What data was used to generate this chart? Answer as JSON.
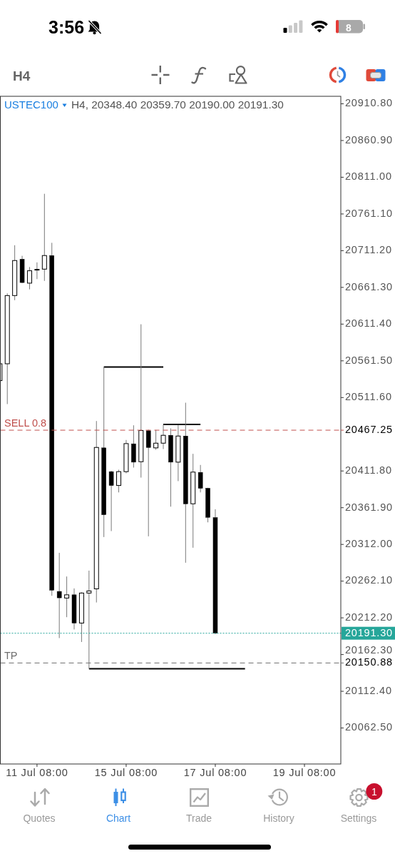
{
  "chart_data": {
    "type": "candlestick",
    "title": "USTEC100",
    "subtitle": "H4, 20348.40 20359.70 20190.00 20191.30",
    "categories": [
      null,
      null,
      null,
      null,
      null,
      "11 Jul 08:00",
      null,
      null,
      null,
      null,
      null,
      null,
      null,
      null,
      null,
      null,
      null,
      "15 Jul 08:00",
      null,
      null,
      null,
      null,
      null,
      null,
      null,
      null,
      null,
      null,
      null,
      "17 Jul 08:00",
      null,
      null,
      null,
      null,
      null,
      null,
      null,
      null,
      null,
      null,
      null,
      "19 Jul 08:00",
      null,
      null,
      null,
      null,
      null
    ],
    "ohlc": [
      [
        20534.6,
        20560.0,
        20525.0,
        20557.5
      ],
      [
        20557.5,
        20653.2,
        20502.7,
        20650.2
      ],
      [
        20650.2,
        20718.6,
        20643.9,
        20697.8
      ],
      [
        20699.6,
        20704.2,
        20667.1,
        20667.9
      ],
      [
        20667.1,
        20689.0,
        20658.6,
        20683.9
      ],
      [
        20685.2,
        20695.3,
        20672.6,
        20685.8
      ],
      [
        20686.1,
        20788.5,
        20670.1,
        20704.6
      ],
      [
        20704.6,
        20721.9,
        20242.2,
        20249.8
      ],
      [
        20248.1,
        20300.6,
        20184.7,
        20239.4
      ],
      [
        20239.1,
        20268.4,
        20213.1,
        20243.5
      ],
      [
        20243.5,
        20252.2,
        20196.4,
        20205.1
      ],
      [
        20205.1,
        20247.0,
        20179.4,
        20245.9
      ],
      [
        20245.9,
        20276.4,
        20143.0,
        20248.8
      ],
      [
        20251.6,
        20479.7,
        20233.1,
        20443.8
      ],
      [
        20443.2,
        20553.4,
        20322.0,
        20352.4
      ],
      [
        20410.9,
        20412.0,
        20330.1,
        20392.1
      ],
      [
        20392.1,
        20413.5,
        20382.7,
        20410.9
      ],
      [
        20410.9,
        20453.9,
        20408.6,
        20449.0
      ],
      [
        20448.7,
        20473.9,
        20416.4,
        20423.8
      ],
      [
        20424.4,
        20611.2,
        20402.8,
        20466.8
      ],
      [
        20466.5,
        20468.0,
        20323.0,
        20443.8
      ],
      [
        20443.2,
        20467.5,
        20440.6,
        20449.6
      ],
      [
        20449.6,
        20474.8,
        20441.6,
        20460.3
      ],
      [
        20460.3,
        20469.7,
        20363.3,
        20423.8
      ],
      [
        20423.8,
        20473.9,
        20398.0,
        20459.3
      ],
      [
        20459.3,
        20504.6,
        20287.1,
        20367.2
      ],
      [
        20367.2,
        20435.1,
        20307.5,
        20410.3
      ],
      [
        20409.9,
        20420.0,
        20382.7,
        20388.3
      ],
      [
        20388.3,
        20389.0,
        20342.0,
        20348.8
      ],
      [
        20348.4,
        20359.7,
        20190.0,
        20191.3
      ],
      null,
      null,
      null,
      null,
      null,
      null,
      null,
      null,
      null,
      null,
      null,
      null,
      null,
      null,
      null,
      null,
      null
    ],
    "series": [
      {
        "type": "line",
        "color": "#000000",
        "values": [
          null,
          null,
          null,
          null,
          null,
          null,
          null,
          null,
          null,
          null,
          null,
          null,
          null,
          null,
          20553,
          20553,
          20553,
          20553,
          20553,
          20553,
          20553,
          20553,
          20553,
          null,
          null,
          null,
          null,
          null,
          null,
          null,
          null,
          null,
          null,
          null,
          null,
          null,
          null,
          null,
          null,
          null,
          null,
          null,
          null,
          null,
          null,
          null,
          null
        ]
      },
      {
        "type": "line",
        "color": "#000000",
        "values": [
          null,
          null,
          null,
          null,
          null,
          null,
          null,
          null,
          null,
          null,
          null,
          null,
          null,
          null,
          null,
          null,
          null,
          null,
          null,
          null,
          null,
          null,
          20475,
          20475,
          20475,
          20475,
          20475,
          20475,
          null,
          null,
          null,
          null,
          null,
          null,
          null,
          null,
          null,
          null,
          null,
          null,
          null,
          null,
          null,
          null,
          null,
          null,
          null
        ]
      },
      {
        "type": "line",
        "color": "#000000",
        "values": [
          null,
          null,
          null,
          null,
          null,
          null,
          null,
          null,
          null,
          null,
          null,
          null,
          20143,
          20143,
          20143,
          20143,
          20143,
          20143,
          20143,
          20143,
          20143,
          20143,
          20143,
          20143,
          20143,
          20143,
          20143,
          20143,
          20143,
          20143,
          20143,
          20143,
          20143,
          20143,
          null,
          null,
          null,
          null,
          null,
          null,
          null,
          null,
          null,
          null,
          null,
          null,
          null
        ]
      }
    ],
    "ylim": [
      20013.6,
      20921.0
    ],
    "yticks": [
      {
        "value": 20910.8,
        "label": "20910.80"
      },
      {
        "value": 20860.9,
        "label": "20860.90"
      },
      {
        "value": 20811.0,
        "label": "20811.00"
      },
      {
        "value": 20761.1,
        "label": "20761.10"
      },
      {
        "value": 20711.2,
        "label": "20711.20"
      },
      {
        "value": 20661.3,
        "label": "20661.30"
      },
      {
        "value": 20611.4,
        "label": "20611.40"
      },
      {
        "value": 20561.5,
        "label": "20561.50"
      },
      {
        "value": 20511.6,
        "label": "20511.60"
      },
      {
        "value": 20467.25,
        "label": "20467.25"
      },
      {
        "value": 20411.8,
        "label": "20411.80"
      },
      {
        "value": 20361.9,
        "label": "20361.90"
      },
      {
        "value": 20312.0,
        "label": "20312.00"
      },
      {
        "value": 20262.1,
        "label": "20262.10"
      },
      {
        "value": 20212.2,
        "label": "20212.20"
      },
      {
        "value": 20191.3,
        "label": "20191.30"
      },
      {
        "value": 20162.3,
        "label": "20162.30"
      },
      {
        "value": 20150.88,
        "label": "20150.88"
      },
      {
        "value": 20112.4,
        "label": "20112.40"
      },
      {
        "value": 20062.5,
        "label": "20062.50"
      }
    ],
    "ref_lines": [
      {
        "axis": "y",
        "value": 20467.25,
        "label": "SELL 0.8",
        "color": "#c0504d",
        "line_style": "dashed"
      },
      {
        "axis": "y",
        "value": 20150.88,
        "label": "TP",
        "color": "#6e6e6e",
        "line_style": "dashed"
      },
      {
        "axis": "y",
        "value": 20191.3,
        "color": "#26a69a",
        "line_style": "dotted"
      }
    ],
    "annotations": [
      "3:56",
      "8",
      "H4",
      "Quotes",
      "Chart",
      "Trade",
      "History",
      "Settings",
      "1"
    ]
  }
}
